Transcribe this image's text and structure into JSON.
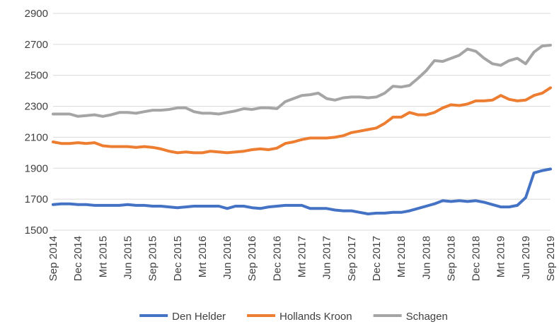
{
  "chart_data": {
    "type": "line",
    "categories": [
      "Sep 2014",
      null,
      null,
      "Dec 2014",
      null,
      null,
      "Mrt 2015",
      null,
      null,
      "Jun 2015",
      null,
      null,
      "Sep 2015",
      null,
      null,
      "Dec 2015",
      null,
      null,
      "Mrt 2016",
      null,
      null,
      "Jun 2016",
      null,
      null,
      "Sep 2016",
      null,
      null,
      "Dec 2016",
      null,
      null,
      "Mrt 2017",
      null,
      null,
      "Jun 2017",
      null,
      null,
      "Sep 2017",
      null,
      null,
      "Dec 2017",
      null,
      null,
      "Mrt 2018",
      null,
      null,
      "Jun 2018",
      null,
      null,
      "Sep 2018",
      null,
      null,
      "Dec 2018",
      null,
      null,
      "Mrt 2019",
      null,
      null,
      "Jun 2019",
      null,
      null,
      "Sep 2019"
    ],
    "series": [
      {
        "name": "Den Helder",
        "color": "#4472c4",
        "values": [
          1665,
          1670,
          1670,
          1665,
          1665,
          1660,
          1660,
          1660,
          1660,
          1665,
          1660,
          1660,
          1655,
          1655,
          1650,
          1645,
          1650,
          1655,
          1655,
          1655,
          1655,
          1640,
          1655,
          1655,
          1645,
          1640,
          1650,
          1655,
          1660,
          1660,
          1660,
          1640,
          1640,
          1640,
          1630,
          1625,
          1625,
          1615,
          1605,
          1610,
          1610,
          1615,
          1615,
          1625,
          1640,
          1655,
          1670,
          1690,
          1685,
          1690,
          1685,
          1690,
          1680,
          1665,
          1650,
          1650,
          1660,
          1710,
          1870,
          1885,
          1895
        ]
      },
      {
        "name": "Hollands Kroon",
        "color": "#ed7d31",
        "values": [
          2070,
          2060,
          2060,
          2065,
          2060,
          2065,
          2045,
          2040,
          2040,
          2040,
          2035,
          2040,
          2035,
          2025,
          2010,
          2000,
          2005,
          2000,
          2000,
          2010,
          2005,
          2000,
          2005,
          2010,
          2020,
          2025,
          2020,
          2030,
          2060,
          2070,
          2085,
          2095,
          2095,
          2095,
          2100,
          2110,
          2130,
          2140,
          2150,
          2160,
          2190,
          2230,
          2230,
          2260,
          2245,
          2245,
          2260,
          2290,
          2310,
          2305,
          2315,
          2335,
          2335,
          2340,
          2370,
          2345,
          2335,
          2340,
          2370,
          2385,
          2420
        ]
      },
      {
        "name": "Schagen",
        "color": "#a5a5a5",
        "values": [
          2250,
          2250,
          2250,
          2235,
          2240,
          2245,
          2235,
          2245,
          2260,
          2260,
          2255,
          2265,
          2275,
          2275,
          2280,
          2290,
          2290,
          2265,
          2255,
          2255,
          2250,
          2260,
          2270,
          2285,
          2280,
          2290,
          2290,
          2285,
          2330,
          2350,
          2370,
          2375,
          2385,
          2350,
          2340,
          2355,
          2360,
          2360,
          2355,
          2360,
          2385,
          2430,
          2425,
          2435,
          2480,
          2530,
          2595,
          2590,
          2610,
          2630,
          2670,
          2655,
          2610,
          2575,
          2565,
          2595,
          2610,
          2575,
          2650,
          2690,
          2695
        ]
      }
    ],
    "ylim": [
      1500,
      2900
    ],
    "yticks": [
      1500,
      1700,
      1900,
      2100,
      2300,
      2500,
      2700,
      2900
    ],
    "grid": true,
    "legend": "bottom"
  }
}
